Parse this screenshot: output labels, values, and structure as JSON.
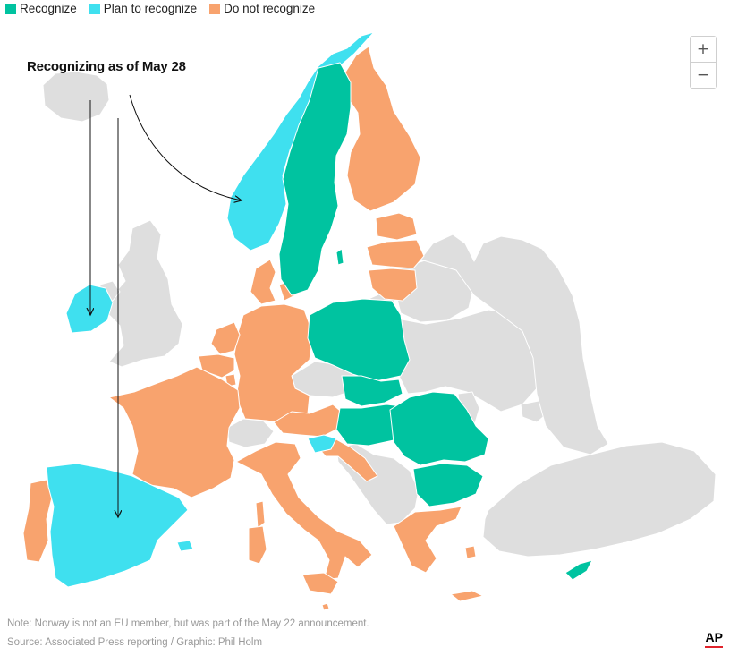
{
  "legend": {
    "items": [
      {
        "label": "Recognize",
        "color": "#00c3a0"
      },
      {
        "label": "Plan to recognize",
        "color": "#3fe0ef"
      },
      {
        "label": "Do not recognize",
        "color": "#f8a36e"
      }
    ]
  },
  "colors": {
    "recognize": "#00c3a0",
    "plan": "#3fe0ef",
    "not_recognize": "#f8a36e",
    "non_member": "#dedede"
  },
  "zoom": {
    "in_label": "+",
    "out_label": "−"
  },
  "annotation": {
    "title": "Recognizing as of May 28"
  },
  "footer": {
    "note": "Note: Norway is not an EU member, but was part of the May 22 announcement.",
    "source": "Source: Associated Press reporting / Graphic: Phil Holm",
    "logo": "AP"
  },
  "regions": [
    {
      "name": "Norway",
      "status": "plan"
    },
    {
      "name": "Ireland",
      "status": "plan"
    },
    {
      "name": "Spain",
      "status": "plan"
    },
    {
      "name": "Slovenia",
      "status": "plan"
    },
    {
      "name": "Sweden",
      "status": "recognize"
    },
    {
      "name": "Poland",
      "status": "recognize"
    },
    {
      "name": "Slovakia",
      "status": "recognize"
    },
    {
      "name": "Hungary",
      "status": "recognize"
    },
    {
      "name": "Romania",
      "status": "recognize"
    },
    {
      "name": "Bulgaria",
      "status": "recognize"
    },
    {
      "name": "Cyprus",
      "status": "recognize"
    },
    {
      "name": "Finland",
      "status": "not_recognize"
    },
    {
      "name": "Estonia",
      "status": "not_recognize"
    },
    {
      "name": "Latvia",
      "status": "not_recognize"
    },
    {
      "name": "Lithuania",
      "status": "not_recognize"
    },
    {
      "name": "Denmark",
      "status": "not_recognize"
    },
    {
      "name": "Germany",
      "status": "not_recognize"
    },
    {
      "name": "Netherlands",
      "status": "not_recognize"
    },
    {
      "name": "Belgium",
      "status": "not_recognize"
    },
    {
      "name": "Luxembourg",
      "status": "not_recognize"
    },
    {
      "name": "France",
      "status": "not_recognize"
    },
    {
      "name": "Portugal",
      "status": "not_recognize"
    },
    {
      "name": "Italy",
      "status": "not_recognize"
    },
    {
      "name": "Austria",
      "status": "not_recognize"
    },
    {
      "name": "Croatia",
      "status": "not_recognize"
    },
    {
      "name": "Greece",
      "status": "not_recognize"
    },
    {
      "name": "Malta",
      "status": "not_recognize"
    },
    {
      "name": "Iceland",
      "status": "non_member"
    },
    {
      "name": "United Kingdom",
      "status": "non_member"
    },
    {
      "name": "Switzerland",
      "status": "non_member"
    },
    {
      "name": "Czechia",
      "status": "non_member"
    },
    {
      "name": "Belarus",
      "status": "non_member"
    },
    {
      "name": "Ukraine",
      "status": "non_member"
    },
    {
      "name": "Moldova",
      "status": "non_member"
    },
    {
      "name": "Balkans",
      "status": "non_member"
    },
    {
      "name": "Turkey",
      "status": "non_member"
    },
    {
      "name": "Russia",
      "status": "non_member"
    }
  ]
}
